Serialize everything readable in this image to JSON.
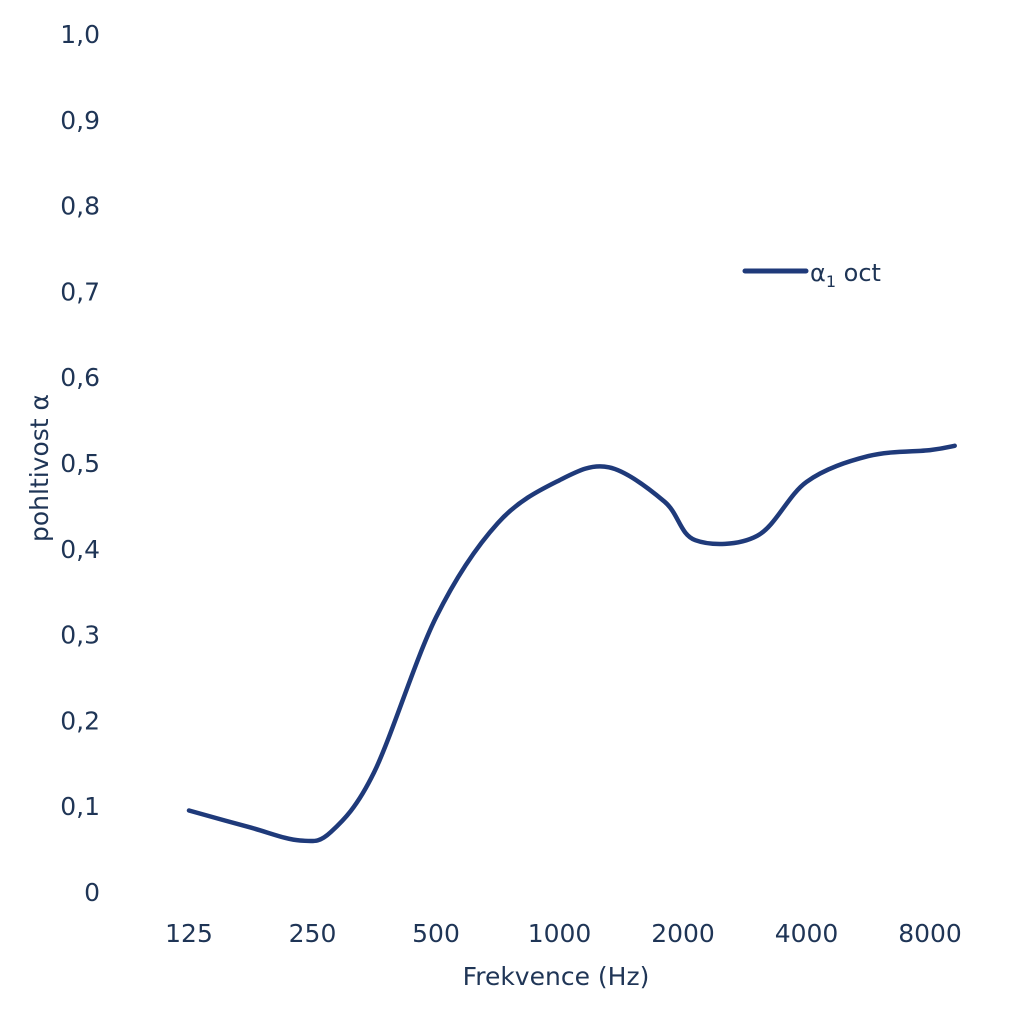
{
  "chart_data": {
    "type": "line",
    "xlabel": "Frekvence (Hz)",
    "ylabel": "pohltivost α",
    "categories": [
      "125",
      "250",
      "500",
      "1000",
      "2000",
      "4000",
      "8000"
    ],
    "y_ticks": [
      "1,0",
      "0,9",
      "0,8",
      "0,7",
      "0,6",
      "0,5",
      "0,4",
      "0,3",
      "0,2",
      "0,1",
      "0"
    ],
    "ylim": [
      0,
      1.0
    ],
    "grid": false,
    "legend_position": "top-right",
    "series": [
      {
        "name": "α1 oct",
        "color": "#1f3a7a",
        "points": [
          {
            "x": 1.0,
            "y": 0.095
          },
          {
            "x": 1.5,
            "y": 0.075
          },
          {
            "x": 1.9,
            "y": 0.06
          },
          {
            "x": 2.15,
            "y": 0.07
          },
          {
            "x": 2.5,
            "y": 0.14
          },
          {
            "x": 3.0,
            "y": 0.32
          },
          {
            "x": 3.5,
            "y": 0.43
          },
          {
            "x": 4.0,
            "y": 0.48
          },
          {
            "x": 4.4,
            "y": 0.495
          },
          {
            "x": 4.85,
            "y": 0.455
          },
          {
            "x": 5.1,
            "y": 0.41
          },
          {
            "x": 5.6,
            "y": 0.415
          },
          {
            "x": 6.0,
            "y": 0.478
          },
          {
            "x": 6.5,
            "y": 0.508
          },
          {
            "x": 7.0,
            "y": 0.515
          },
          {
            "x": 7.2,
            "y": 0.52
          }
        ]
      }
    ]
  },
  "legend": {
    "label_main": "α",
    "label_sub": "1",
    "label_suffix": " oct"
  }
}
